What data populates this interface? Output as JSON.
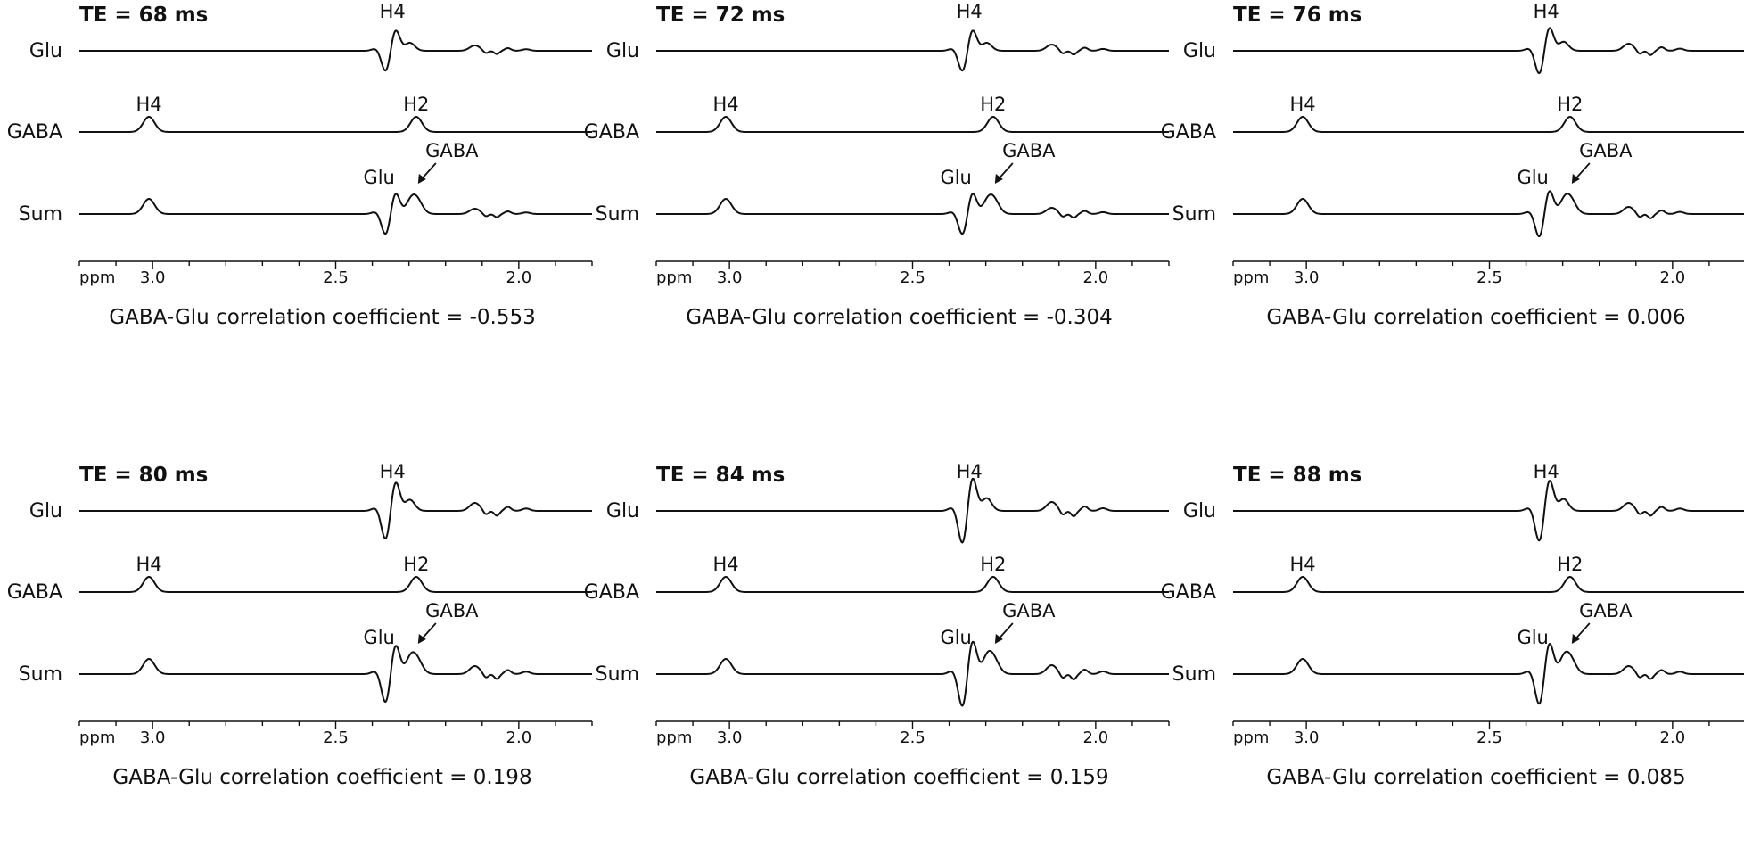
{
  "colors": {
    "ink": "#111111",
    "background": "#ffffff"
  },
  "chart_data": {
    "type": "line",
    "figure_description_units": "ppm",
    "row_labels": [
      "Glu",
      "GABA",
      "Sum"
    ],
    "axis": {
      "label": "ppm",
      "xlim": [
        3.2,
        1.8
      ],
      "reversed": true,
      "major_ticks": [
        3.0,
        2.5,
        2.0
      ],
      "major_tick_labels": [
        "3.0",
        "2.5",
        "2.0"
      ],
      "minor_tick_step": 0.1
    },
    "caption_prefix": "GABA-Glu correlation coefficient = ",
    "panels": [
      {
        "te_label": "TE = 68 ms",
        "correlation": "-0.553",
        "glu_peak_label": "H4",
        "gaba_peak_labels": [
          "H4",
          "H2"
        ],
        "sum_labels": {
          "glu": "Glu",
          "gaba": "GABA"
        },
        "glu_h4_ppm": 2.345,
        "gaba_h4_ppm": 3.01,
        "gaba_h2_ppm": 2.28
      },
      {
        "te_label": "TE = 72 ms",
        "correlation": "-0.304",
        "glu_peak_label": "H4",
        "gaba_peak_labels": [
          "H4",
          "H2"
        ],
        "sum_labels": {
          "glu": "Glu",
          "gaba": "GABA"
        },
        "glu_h4_ppm": 2.345,
        "gaba_h4_ppm": 3.01,
        "gaba_h2_ppm": 2.28
      },
      {
        "te_label": "TE = 76 ms",
        "correlation": "0.006",
        "glu_peak_label": "H4",
        "gaba_peak_labels": [
          "H4",
          "H2"
        ],
        "sum_labels": {
          "glu": "Glu",
          "gaba": "GABA"
        },
        "glu_h4_ppm": 2.345,
        "gaba_h4_ppm": 3.01,
        "gaba_h2_ppm": 2.28
      },
      {
        "te_label": "TE = 80 ms",
        "correlation": "0.198",
        "glu_peak_label": "H4",
        "gaba_peak_labels": [
          "H4",
          "H2"
        ],
        "sum_labels": {
          "glu": "Glu",
          "gaba": "GABA"
        },
        "glu_h4_ppm": 2.345,
        "gaba_h4_ppm": 3.01,
        "gaba_h2_ppm": 2.28
      },
      {
        "te_label": "TE = 84 ms",
        "correlation": "0.159",
        "glu_peak_label": "H4",
        "gaba_peak_labels": [
          "H4",
          "H2"
        ],
        "sum_labels": {
          "glu": "Glu",
          "gaba": "GABA"
        },
        "glu_h4_ppm": 2.345,
        "gaba_h4_ppm": 3.01,
        "gaba_h2_ppm": 2.28
      },
      {
        "te_label": "TE = 88 ms",
        "correlation": "0.085",
        "glu_peak_label": "H4",
        "gaba_peak_labels": [
          "H4",
          "H2"
        ],
        "sum_labels": {
          "glu": "Glu",
          "gaba": "GABA"
        },
        "glu_h4_ppm": 2.345,
        "gaba_h4_ppm": 3.01,
        "gaba_h2_ppm": 2.28
      }
    ]
  }
}
